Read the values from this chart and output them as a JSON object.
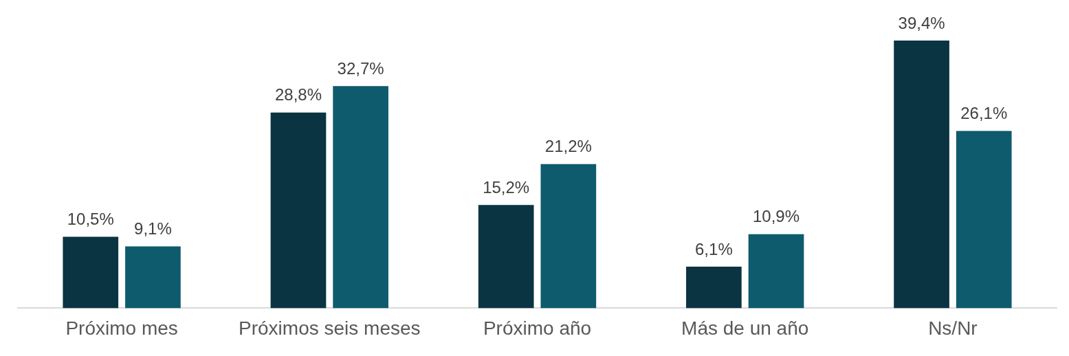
{
  "chart_data": {
    "type": "bar",
    "relative": false,
    "categories": [
      "Próximo mes",
      "Próximos seis meses",
      "Próximo año",
      "Más de un año",
      "Ns/Nr"
    ],
    "series": [
      {
        "color": "#0b3442",
        "values": [
          10.5,
          28.8,
          15.2,
          6.1,
          39.4
        ],
        "value_labels": [
          "10,5%",
          "28,8%",
          "15,2%",
          "6,1%",
          "39,4%"
        ]
      },
      {
        "color": "#0f5b6e",
        "values": [
          9.1,
          32.7,
          21.2,
          10.9,
          26.1
        ],
        "value_labels": [
          "9,1%",
          "32,7%",
          "21,2%",
          "10,9%",
          "26,1%"
        ]
      }
    ],
    "grid": false,
    "legend": false
  }
}
